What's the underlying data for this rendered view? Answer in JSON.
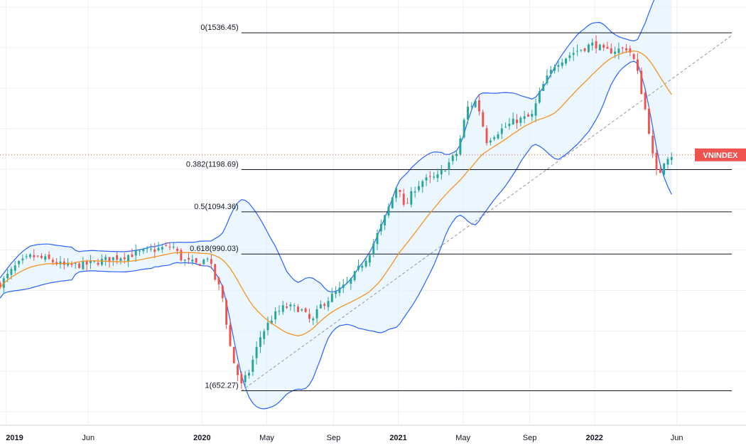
{
  "chart_data": {
    "type": "candlestick",
    "symbol": "VNINDEX",
    "last_value": 1235,
    "y_range": [
      560,
      1600
    ],
    "x_range": [
      2018.97,
      2022.7
    ],
    "x_ticks": [
      {
        "label": "2019",
        "t": 2019.0,
        "bold": true
      },
      {
        "label": "Jun",
        "t": 2019.42,
        "bold": false
      },
      {
        "label": "2020",
        "t": 2020.0,
        "bold": true
      },
      {
        "label": "May",
        "t": 2020.33,
        "bold": false
      },
      {
        "label": "Sep",
        "t": 2020.67,
        "bold": false
      },
      {
        "label": "2021",
        "t": 2021.0,
        "bold": true
      },
      {
        "label": "May",
        "t": 2021.33,
        "bold": false
      },
      {
        "label": "Sep",
        "t": 2021.67,
        "bold": false
      },
      {
        "label": "2022",
        "t": 2022.0,
        "bold": true
      },
      {
        "label": "Jun",
        "t": 2022.42,
        "bold": false
      }
    ],
    "fib_levels": [
      {
        "label": "0(1536.45)",
        "value": 1536.45
      },
      {
        "label": "0.382(1198.69)",
        "value": 1198.69
      },
      {
        "label": "0.5(1094.36)",
        "value": 1094.36
      },
      {
        "label": "0.618(990.03)",
        "value": 990.03
      },
      {
        "label": "1(652.27)",
        "value": 652.27
      }
    ],
    "fib_range_t": [
      2020.2,
      2022.7
    ],
    "trend_line": {
      "t1": 2020.2,
      "v1": 652,
      "t2": 2022.7,
      "v2": 1530
    },
    "colors": {
      "up": "#26a69a",
      "down": "#ef5350",
      "ma": "#f7931e",
      "bands": "#2962ff",
      "band_fill": "#e3f2fd",
      "fib_line": "#131722",
      "trend": "#9598a1",
      "grid": "#edf0f5",
      "price_line": "#ef5350"
    },
    "anchors": [
      [
        2018.97,
        915
      ],
      [
        2019.05,
        960
      ],
      [
        2019.13,
        985
      ],
      [
        2019.22,
        975
      ],
      [
        2019.3,
        960
      ],
      [
        2019.42,
        965
      ],
      [
        2019.5,
        975
      ],
      [
        2019.6,
        985
      ],
      [
        2019.7,
        995
      ],
      [
        2019.8,
        1005
      ],
      [
        2019.85,
        1010
      ],
      [
        2019.9,
        975
      ],
      [
        2019.97,
        965
      ],
      [
        2020.0,
        970
      ],
      [
        2020.03,
        985
      ],
      [
        2020.06,
        935
      ],
      [
        2020.1,
        895
      ],
      [
        2020.15,
        740
      ],
      [
        2020.2,
        665
      ],
      [
        2020.24,
        700
      ],
      [
        2020.3,
        790
      ],
      [
        2020.36,
        835
      ],
      [
        2020.42,
        860
      ],
      [
        2020.5,
        855
      ],
      [
        2020.56,
        820
      ],
      [
        2020.6,
        860
      ],
      [
        2020.67,
        890
      ],
      [
        2020.75,
        920
      ],
      [
        2020.85,
        990
      ],
      [
        2020.94,
        1090
      ],
      [
        2021.0,
        1170
      ],
      [
        2021.03,
        1100
      ],
      [
        2021.08,
        1150
      ],
      [
        2021.12,
        1170
      ],
      [
        2021.2,
        1180
      ],
      [
        2021.3,
        1240
      ],
      [
        2021.35,
        1350
      ],
      [
        2021.4,
        1370
      ],
      [
        2021.45,
        1270
      ],
      [
        2021.5,
        1290
      ],
      [
        2021.6,
        1320
      ],
      [
        2021.68,
        1330
      ],
      [
        2021.73,
        1400
      ],
      [
        2021.8,
        1460
      ],
      [
        2021.9,
        1490
      ],
      [
        2022.0,
        1510
      ],
      [
        2022.05,
        1490
      ],
      [
        2022.12,
        1495
      ],
      [
        2022.17,
        1500
      ],
      [
        2022.21,
        1460
      ],
      [
        2022.27,
        1320
      ],
      [
        2022.31,
        1190
      ],
      [
        2022.34,
        1195
      ],
      [
        2022.36,
        1230
      ],
      [
        2022.4,
        1235
      ]
    ]
  }
}
